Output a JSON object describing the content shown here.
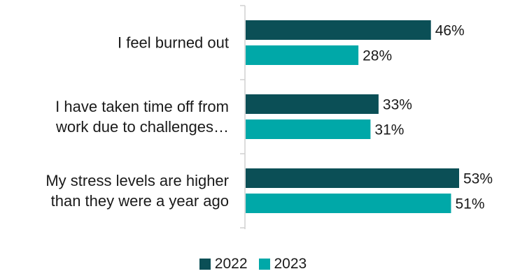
{
  "chart_data": {
    "type": "bar",
    "orientation": "horizontal",
    "categories": [
      [
        "I feel burned out"
      ],
      [
        "I have taken time off from",
        "work due to challenges…"
      ],
      [
        "My stress levels are higher",
        "than they were a year ago"
      ]
    ],
    "series": [
      {
        "name": "2022",
        "color": "#0b4f56",
        "values": [
          46,
          33,
          53
        ],
        "labels": [
          "46%",
          "33%",
          "53%"
        ]
      },
      {
        "name": "2023",
        "color": "#00a8a8",
        "values": [
          28,
          31,
          51
        ],
        "labels": [
          "28%",
          "31%",
          "51%"
        ]
      }
    ],
    "xlim": [
      0,
      53
    ],
    "grid": false,
    "legend_position": "bottom"
  }
}
